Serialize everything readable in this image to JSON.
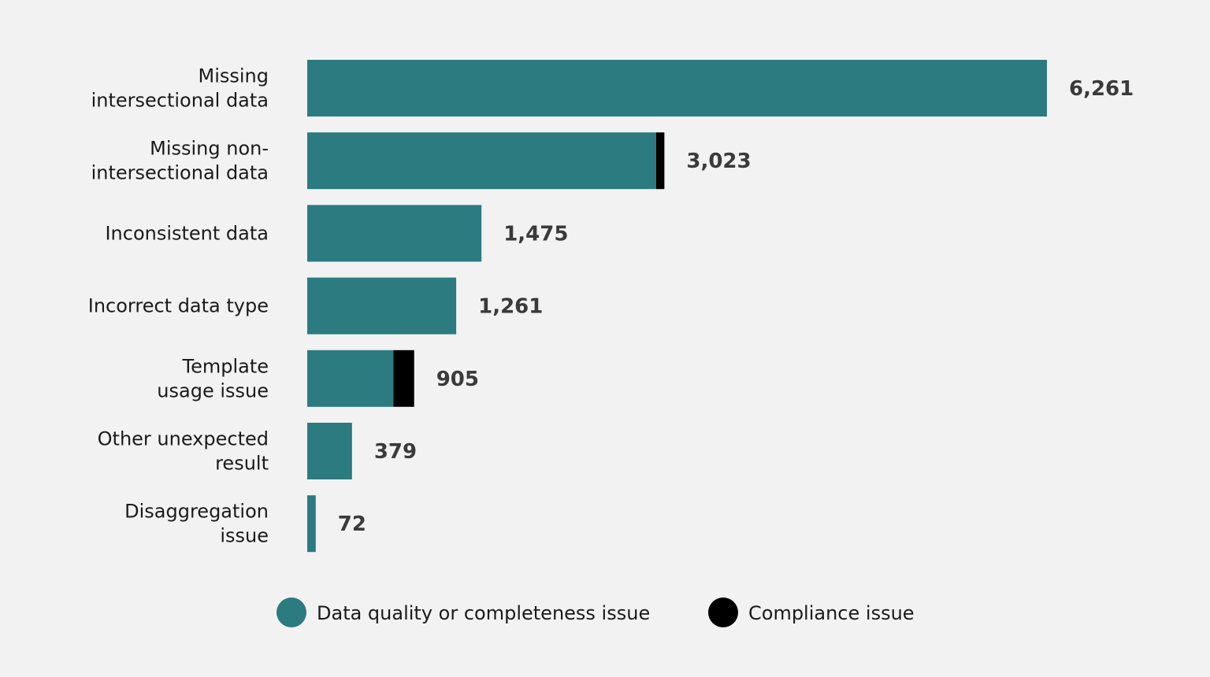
{
  "chart_data": {
    "type": "bar",
    "orientation": "horizontal",
    "stacked": true,
    "title": "",
    "xlabel": "",
    "ylabel": "",
    "categories": [
      [
        "Missing",
        "intersectional data"
      ],
      [
        "Missing non-",
        "intersectional data"
      ],
      [
        "Inconsistent data"
      ],
      [
        "Incorrect data type"
      ],
      [
        "Template",
        "usage issue"
      ],
      [
        "Other unexpected",
        "result"
      ],
      [
        "Disaggregation",
        "issue"
      ]
    ],
    "totals_labels": [
      "6,261",
      "3,023",
      "1,475",
      "1,261",
      "905",
      "379",
      "72"
    ],
    "series": [
      {
        "name": "Data quality or completeness issue",
        "color": "#2b7b80",
        "values": [
          6261,
          2953,
          1475,
          1261,
          730,
          379,
          72
        ]
      },
      {
        "name": "Compliance issue",
        "color": "#000000",
        "values": [
          0,
          70,
          0,
          0,
          175,
          0,
          0
        ]
      }
    ],
    "xlim": [
      0,
      6261
    ],
    "grid": false,
    "legend_position": "bottom"
  }
}
